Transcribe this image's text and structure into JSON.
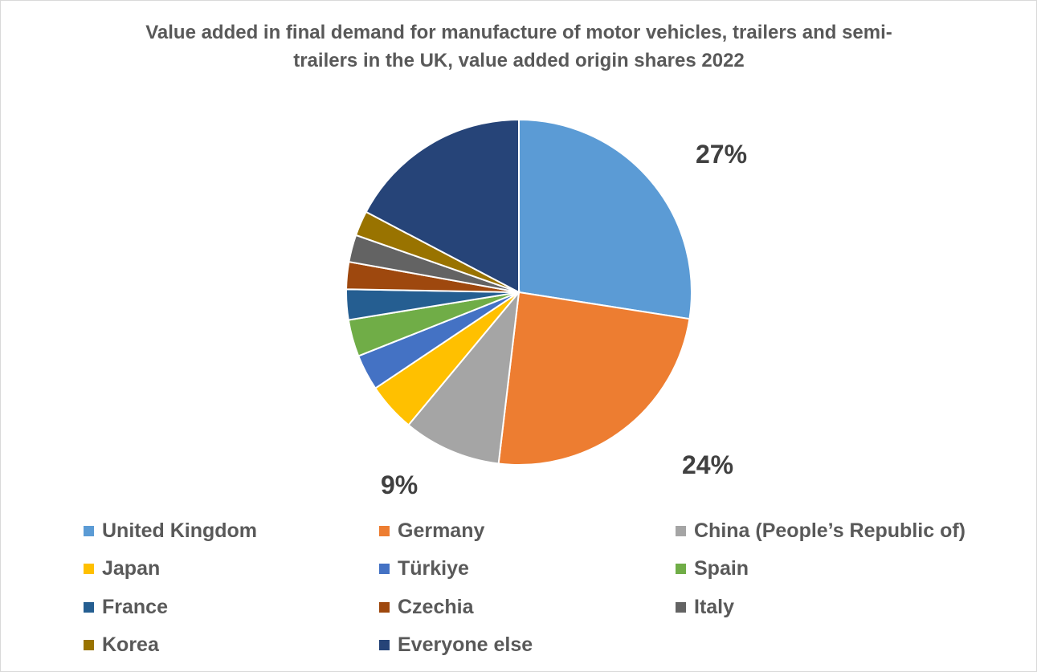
{
  "chart_data": {
    "type": "pie",
    "title": "Value added in final demand for manufacture of motor vehicles, trailers and semi-trailers in the UK, value added origin shares 2022",
    "title_lines": [
      "Value added in final demand for manufacture of motor vehicles, trailers and semi-",
      "trailers in the UK, value added origin shares 2022"
    ],
    "slices": [
      {
        "name": "United Kingdom",
        "value": 27,
        "color": "#5b9bd5",
        "label": "27%"
      },
      {
        "name": "Germany",
        "value": 24,
        "color": "#ed7d31",
        "label": "24%"
      },
      {
        "name": "China (People’s Republic of)",
        "value": 9,
        "color": "#a5a5a5",
        "label": "9%"
      },
      {
        "name": "Japan",
        "value": 4.5,
        "color": "#ffc000",
        "label": ""
      },
      {
        "name": "Türkiye",
        "value": 3.3,
        "color": "#4472c4",
        "label": ""
      },
      {
        "name": "Spain",
        "value": 3.4,
        "color": "#70ad47",
        "label": ""
      },
      {
        "name": "France",
        "value": 2.8,
        "color": "#255e91",
        "label": ""
      },
      {
        "name": "Czechia",
        "value": 2.5,
        "color": "#9e480e",
        "label": ""
      },
      {
        "name": "Italy",
        "value": 2.5,
        "color": "#636363",
        "label": ""
      },
      {
        "name": "Korea",
        "value": 2.3,
        "color": "#997300",
        "label": ""
      },
      {
        "name": "Everyone else",
        "value": 17,
        "color": "#264478",
        "label": ""
      }
    ],
    "legend_position": "bottom",
    "legend_columns": 3
  }
}
